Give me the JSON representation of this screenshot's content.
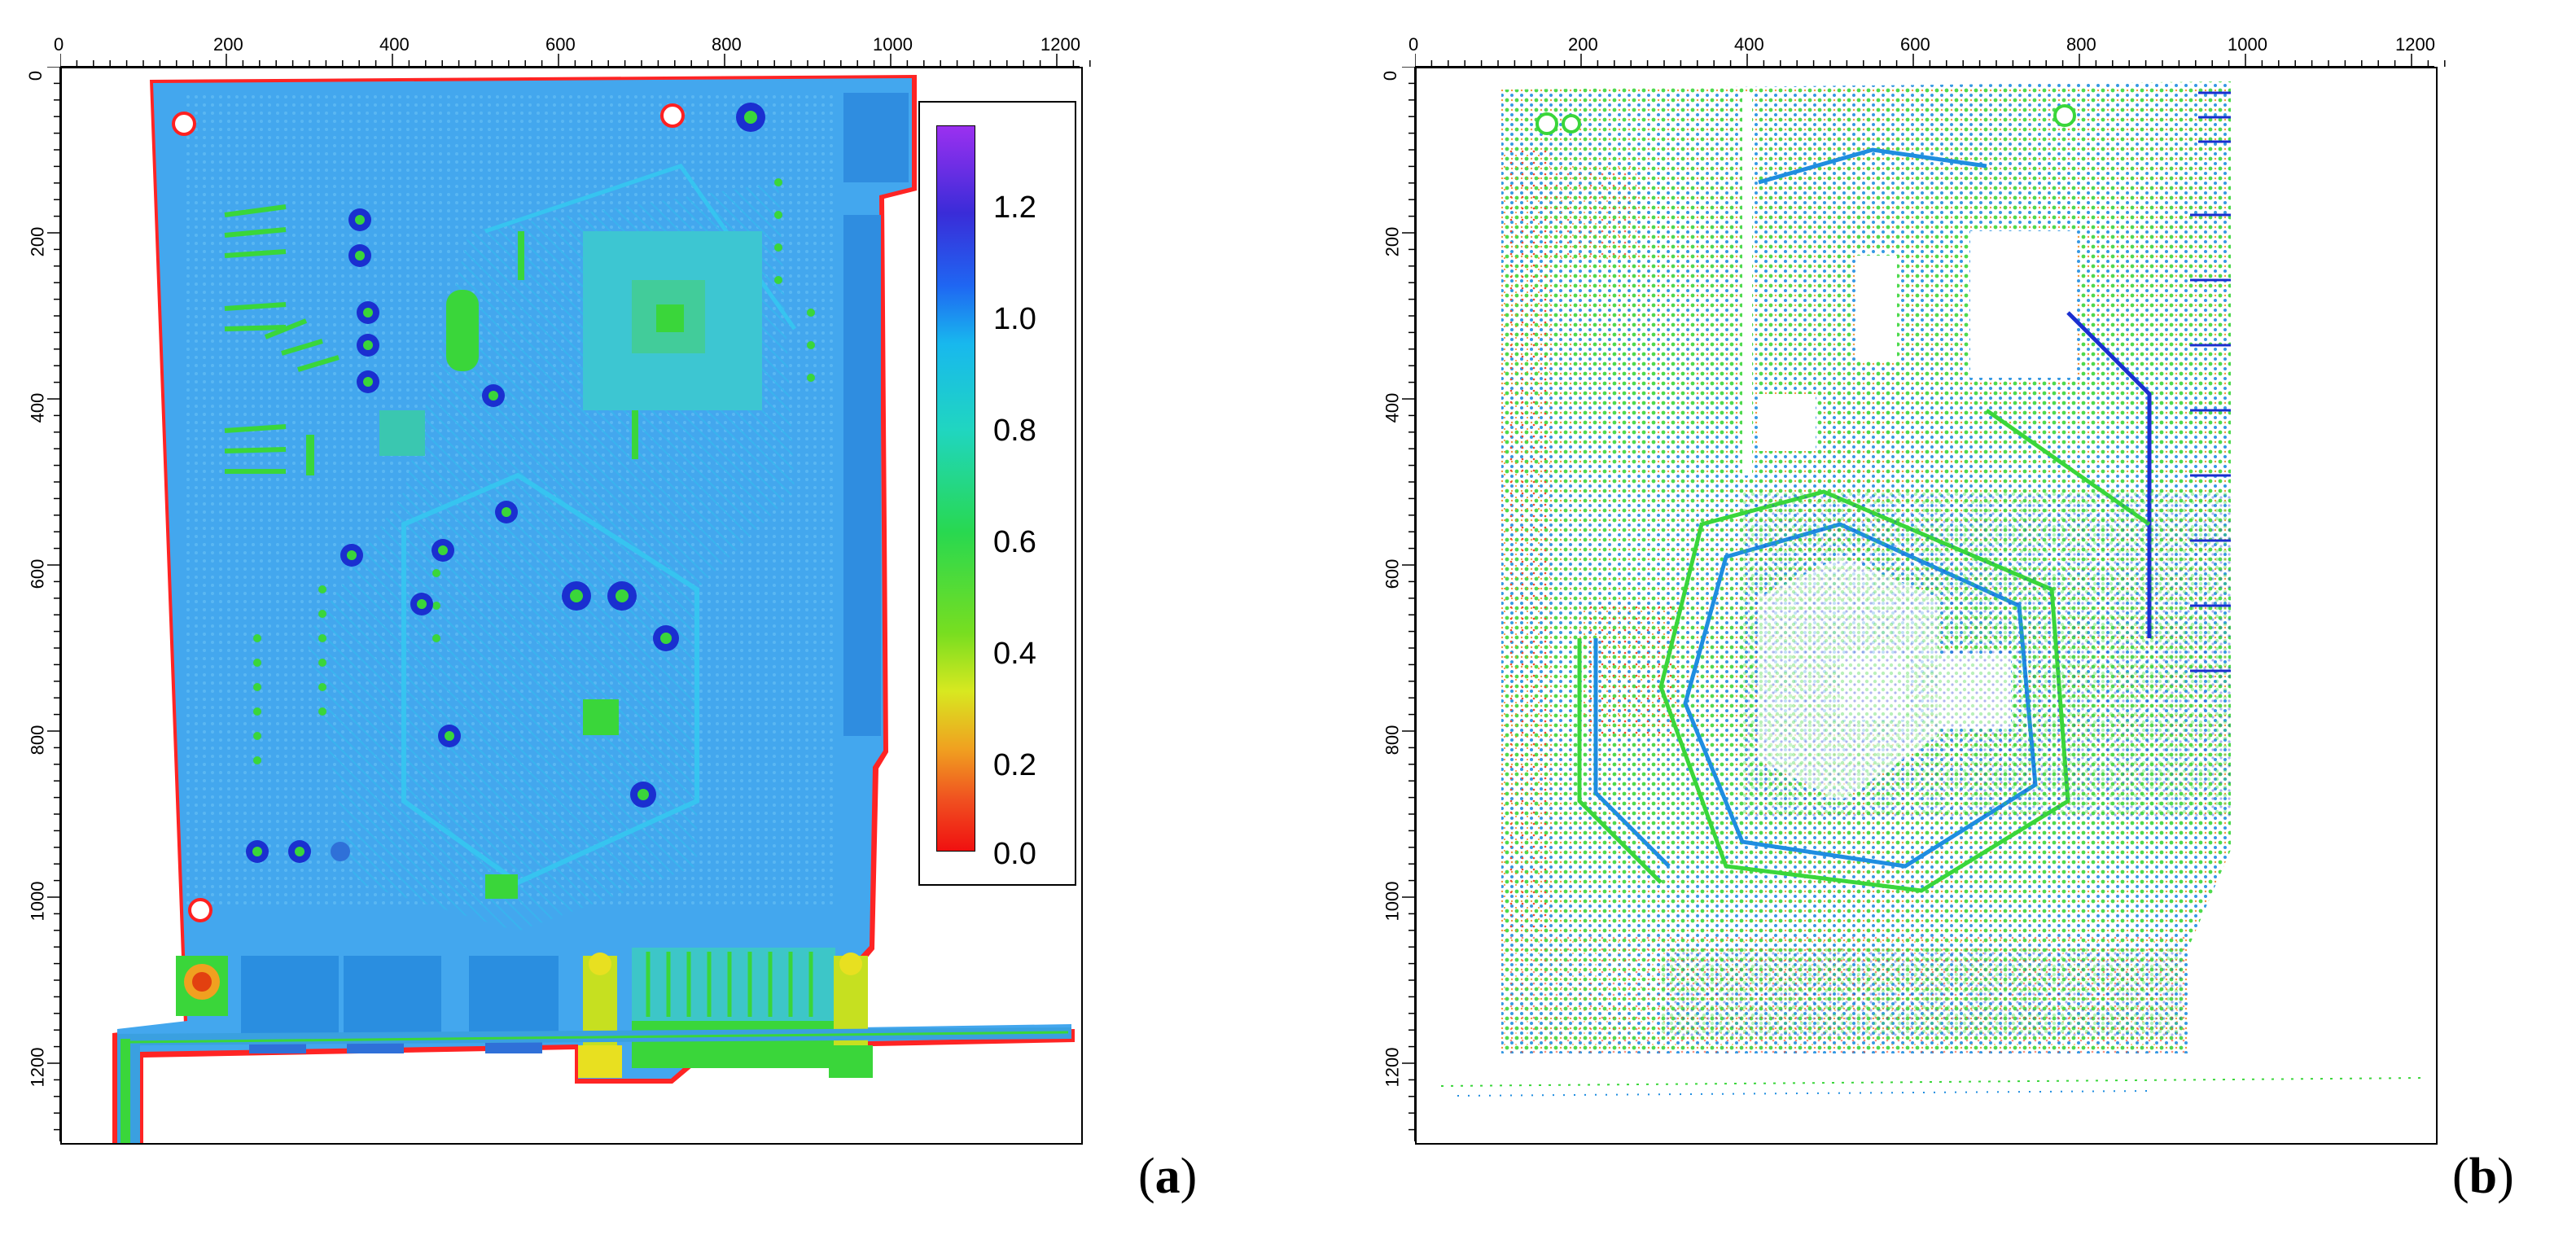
{
  "panels": [
    {
      "id": "a",
      "label_open": "(",
      "label_letter": "a",
      "label_close": ")",
      "x_ticks": [
        "0",
        "200",
        "400",
        "600",
        "800",
        "1000",
        "1200"
      ],
      "y_ticks": [
        "0",
        "200",
        "400",
        "600",
        "800",
        "1000",
        "1200"
      ],
      "colorbar_ticks": [
        "1.2",
        "1.0",
        "0.8",
        "0.6",
        "0.4",
        "0.2",
        "0.0"
      ]
    },
    {
      "id": "b",
      "label_open": "(",
      "label_letter": "b",
      "label_close": ")",
      "x_ticks": [
        "0",
        "200",
        "400",
        "600",
        "800",
        "1000",
        "1200"
      ],
      "y_ticks": [
        "0",
        "200",
        "400",
        "600",
        "800",
        "1000",
        "1200"
      ]
    }
  ],
  "colors": {
    "board_blue": "#3ea8ee",
    "trace_cyan": "#32c8f0",
    "component_green": "#3ad63a",
    "hole_blue": "#1b2fd0",
    "edge_red": "#ff2020",
    "noise_orange": "#f08a2a"
  }
}
